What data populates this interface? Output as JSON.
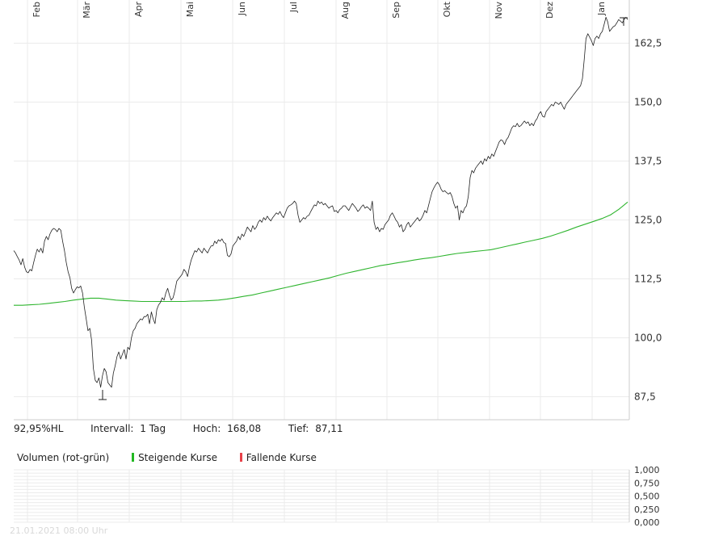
{
  "chart_data": [
    {
      "type": "line",
      "x_tick_labels": [
        "Feb",
        "Mär",
        "Apr",
        "Mai",
        "Jun",
        "Jul",
        "Aug",
        "Sep",
        "Okt",
        "Nov",
        "Dez",
        "Jan"
      ],
      "y_tick_labels": [
        "87,5",
        "100,0",
        "112,5",
        "125,0",
        "137,5",
        "150,0",
        "162,5"
      ],
      "y_ticks": [
        87.5,
        100.0,
        112.5,
        125.0,
        137.5,
        150.0,
        162.5
      ],
      "ylim": [
        84.5,
        171.5
      ],
      "grid": true,
      "series": [
        {
          "style": "thin black line",
          "color": "#222222",
          "values": [
            118.5,
            118.0,
            117.2,
            116.5,
            115.5,
            116.8,
            115.0,
            114.0,
            113.8,
            114.5,
            114.2,
            116.0,
            117.5,
            118.8,
            118.2,
            119.0,
            118.0,
            120.5,
            121.5,
            120.8,
            122.0,
            122.8,
            123.2,
            123.0,
            122.5,
            123.2,
            122.8,
            120.5,
            118.5,
            116.0,
            114.0,
            112.8,
            110.5,
            109.5,
            110.2,
            110.8,
            110.6,
            111.0,
            109.5,
            106.5,
            104.0,
            101.5,
            102.0,
            99.5,
            93.5,
            91.0,
            90.5,
            91.5,
            89.5,
            92.0,
            93.5,
            92.8,
            90.5,
            90.0,
            89.5,
            92.5,
            94.0,
            96.0,
            97.0,
            95.5,
            96.5,
            97.5,
            95.5,
            98.0,
            97.5,
            100.0,
            101.5,
            102.0,
            103.0,
            103.5,
            104.0,
            103.8,
            104.5,
            104.5,
            105.0,
            103.0,
            105.5,
            104.0,
            103.0,
            106.0,
            107.0,
            107.5,
            108.5,
            108.0,
            109.5,
            110.5,
            109.0,
            108.0,
            108.5,
            110.0,
            112.0,
            112.5,
            113.0,
            113.5,
            114.5,
            114.0,
            113.0,
            115.0,
            116.5,
            117.5,
            118.5,
            118.2,
            119.0,
            118.5,
            118.0,
            119.0,
            118.5,
            118.0,
            118.8,
            119.5,
            119.5,
            120.5,
            120.0,
            120.8,
            120.5,
            121.0,
            120.2,
            120.0,
            117.5,
            117.2,
            117.8,
            119.5,
            120.0,
            120.5,
            121.5,
            120.8,
            122.0,
            121.5,
            122.5,
            123.5,
            123.0,
            122.5,
            123.8,
            123.0,
            123.5,
            124.5,
            125.0,
            124.5,
            125.5,
            125.0,
            125.8,
            125.2,
            124.8,
            125.5,
            126.0,
            126.5,
            126.2,
            126.8,
            126.0,
            125.5,
            126.5,
            127.5,
            128.0,
            128.2,
            128.5,
            129.0,
            128.5,
            126.0,
            124.5,
            125.0,
            125.5,
            125.2,
            125.8,
            126.0,
            126.8,
            127.5,
            128.2,
            128.0,
            129.0,
            128.5,
            128.8,
            128.2,
            128.5,
            128.0,
            127.5,
            127.8,
            128.0,
            126.8,
            127.0,
            126.5,
            127.2,
            127.5,
            128.0,
            128.0,
            127.5,
            127.0,
            127.8,
            128.5,
            128.0,
            127.5,
            126.8,
            127.2,
            127.8,
            128.2,
            127.5,
            127.8,
            127.5,
            127.0,
            129.0,
            124.5,
            123.0,
            123.5,
            122.5,
            123.2,
            123.0,
            124.0,
            124.5,
            125.0,
            126.0,
            126.5,
            125.8,
            125.0,
            124.5,
            123.5,
            124.0,
            122.5,
            123.0,
            124.0,
            124.5,
            123.5,
            124.0,
            124.5,
            125.0,
            125.5,
            124.8,
            125.2,
            126.0,
            127.0,
            126.5,
            128.0,
            129.5,
            131.0,
            131.8,
            132.5,
            133.0,
            132.5,
            131.5,
            131.0,
            131.2,
            130.8,
            130.5,
            130.8,
            130.0,
            128.5,
            127.5,
            128.0,
            125.0,
            127.0,
            126.5,
            127.5,
            128.0,
            130.0,
            134.0,
            135.5,
            135.0,
            136.0,
            136.5,
            137.0,
            137.5,
            136.8,
            138.0,
            137.5,
            138.5,
            138.0,
            139.0,
            138.5,
            139.5,
            140.5,
            141.5,
            142.0,
            141.8,
            141.0,
            142.0,
            142.5,
            143.5,
            144.5,
            145.0,
            144.8,
            145.5,
            144.8,
            145.0,
            145.5,
            146.0,
            145.5,
            145.8,
            145.0,
            145.5,
            145.0,
            146.0,
            146.5,
            147.5,
            148.0,
            147.0,
            146.8,
            148.0,
            148.5,
            149.0,
            149.5,
            149.2,
            150.0,
            149.8,
            149.5,
            150.0,
            149.2,
            148.5,
            149.5,
            150.0,
            150.5,
            151.0,
            151.5,
            152.0,
            152.5,
            153.0,
            153.5,
            155.0,
            159.0,
            163.5,
            164.5,
            163.8,
            163.0,
            162.0,
            163.5,
            164.0,
            163.5,
            164.5,
            165.0,
            166.5,
            168.0,
            167.0,
            165.0,
            165.5,
            166.0,
            166.2,
            166.8,
            167.5,
            167.2,
            166.8,
            167.5,
            168.0,
            167.5
          ]
        },
        {
          "style": "green moving-average line",
          "color": "#2fb52f",
          "values": [
            106.9,
            106.9,
            107.0,
            107.1,
            107.3,
            107.5,
            107.7,
            108.0,
            108.2,
            108.4,
            108.4,
            108.2,
            108.0,
            107.9,
            107.8,
            107.7,
            107.7,
            107.7,
            107.7,
            107.7,
            107.7,
            107.8,
            107.8,
            107.9,
            108.0,
            108.2,
            108.5,
            108.8,
            109.1,
            109.5,
            109.9,
            110.3,
            110.7,
            111.1,
            111.5,
            111.9,
            112.3,
            112.7,
            113.2,
            113.7,
            114.1,
            114.5,
            114.9,
            115.3,
            115.6,
            115.9,
            116.2,
            116.5,
            116.8,
            117.0,
            117.3,
            117.6,
            117.9,
            118.1,
            118.3,
            118.5,
            118.7,
            119.1,
            119.5,
            119.9,
            120.3,
            120.7,
            121.1,
            121.6,
            122.2,
            122.8,
            123.5,
            124.1,
            124.7,
            125.3,
            126.1,
            127.3,
            128.8
          ]
        }
      ],
      "annotations": [
        "T (low marker)",
        "H (high marker)"
      ]
    },
    {
      "type": "bar",
      "title": "Volumen (rot-grün)",
      "legend": [
        {
          "label": "Steigende Kurse",
          "color": "#22b822"
        },
        {
          "label": "Fallende Kurse",
          "color": "#e8424a"
        }
      ],
      "y_tick_labels": [
        "1,000",
        "0,750",
        "0,500",
        "0,250",
        "0,000"
      ],
      "y_ticks": [
        1.0,
        0.75,
        0.5,
        0.25,
        0.0
      ],
      "ylim": [
        0,
        1
      ],
      "values": []
    }
  ],
  "info": {
    "hl_range": "92,95%HL",
    "interval_label": "Intervall:",
    "interval_value": "1 Tag",
    "high_label": "Hoch:",
    "high_value": "168,08",
    "low_label": "Tief:",
    "low_value": "87,11"
  },
  "footer": {
    "timestamp": "21.01.2021 08:00 Uhr"
  },
  "colors": {
    "grid": "#ebebeb",
    "axis": "#cccccc",
    "price_line": "#222222",
    "average_line": "#2fb52f",
    "footer_text": "#d9d9d9"
  }
}
